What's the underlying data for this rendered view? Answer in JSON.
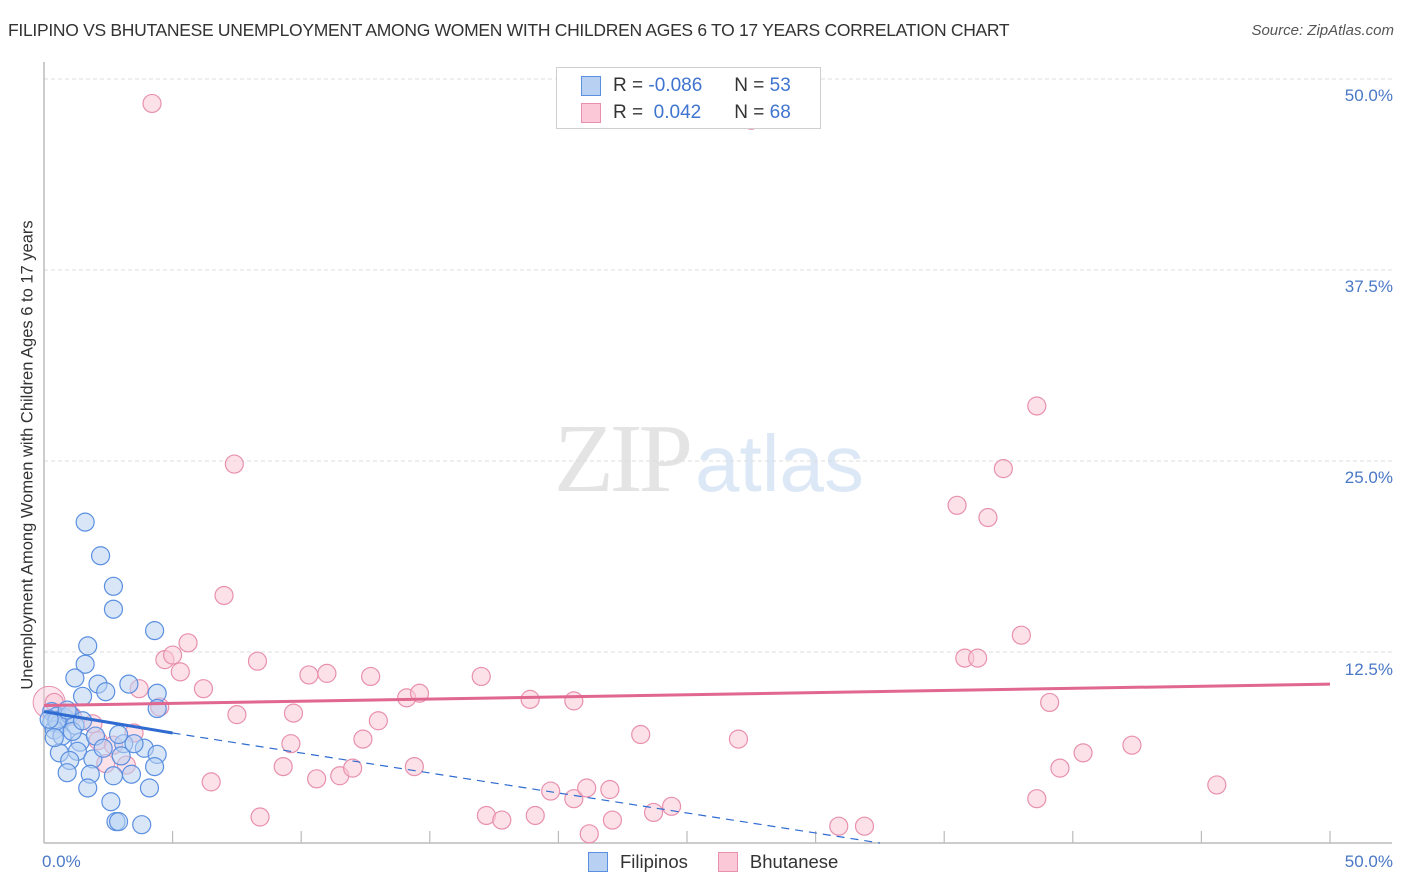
{
  "header": {
    "title": "FILIPINO VS BHUTANESE UNEMPLOYMENT AMONG WOMEN WITH CHILDREN AGES 6 TO 17 YEARS CORRELATION CHART",
    "source": "Source: ZipAtlas.com"
  },
  "watermark": {
    "zip": "ZIP",
    "atlas": "atlas"
  },
  "colors": {
    "filipinos_fill": "#b8d1f3",
    "filipinos_stroke": "#5b8fe0",
    "filipinos_line": "#2f6bd0",
    "bhutanese_fill": "#fac8d7",
    "bhutanese_stroke": "#e890ad",
    "bhutanese_line": "#e0678f",
    "axis_text": "#4a78c6",
    "grid": "#dddddd"
  },
  "legend_top": {
    "rows": [
      {
        "series": "Filipinos",
        "r_label": "R =",
        "r_value": "-0.086",
        "n_label": "N =",
        "n_value": "53"
      },
      {
        "series": "Bhutanese",
        "r_label": "R =",
        "r_value": " 0.042",
        "n_label": "N =",
        "n_value": "68"
      }
    ]
  },
  "legend_bottom": {
    "items": [
      "Filipinos",
      "Bhutanese"
    ]
  },
  "axes": {
    "ylabel": "Unemployment Among Women with Children Ages 6 to 17 years",
    "y_ticks": [
      "50.0%",
      "37.5%",
      "25.0%",
      "12.5%"
    ],
    "x_ticks": [
      "0.0%",
      "50.0%"
    ]
  },
  "chart_data": {
    "type": "scatter",
    "title": "FILIPINO VS BHUTANESE UNEMPLOYMENT AMONG WOMEN WITH CHILDREN AGES 6 TO 17 YEARS CORRELATION CHART",
    "xlabel": "",
    "ylabel": "Unemployment Among Women with Children Ages 6 to 17 years",
    "xlim": [
      0,
      50
    ],
    "ylim": [
      0,
      50
    ],
    "x_tick_labels": [
      "0.0%",
      "50.0%"
    ],
    "y_tick_labels": [
      "12.5%",
      "25.0%",
      "37.5%",
      "50.0%"
    ],
    "grid": true,
    "legend_position": "bottom-center",
    "series": [
      {
        "name": "Filipinos",
        "R": -0.086,
        "N": 53,
        "trend": {
          "x0": 0,
          "y0": 8.6,
          "x1": 5,
          "y1": 7.2,
          "extended_dashed_to": {
            "x": 32.5,
            "y": 0
          }
        },
        "points": [
          [
            1.6,
            21.0
          ],
          [
            2.2,
            18.8
          ],
          [
            2.7,
            16.8
          ],
          [
            2.7,
            15.3
          ],
          [
            4.3,
            13.9
          ],
          [
            1.7,
            12.9
          ],
          [
            1.6,
            11.7
          ],
          [
            1.2,
            10.8
          ],
          [
            2.1,
            10.4
          ],
          [
            3.3,
            10.4
          ],
          [
            4.4,
            9.8
          ],
          [
            1.5,
            9.6
          ],
          [
            2.4,
            9.9
          ],
          [
            4.4,
            8.8
          ],
          [
            0.3,
            8.6
          ],
          [
            0.5,
            8.3
          ],
          [
            0.8,
            8.2
          ],
          [
            0.3,
            7.9
          ],
          [
            0.6,
            7.8
          ],
          [
            1.0,
            8.4
          ],
          [
            1.2,
            7.7
          ],
          [
            0.4,
            7.4
          ],
          [
            0.7,
            7.0
          ],
          [
            1.4,
            6.6
          ],
          [
            2.0,
            7.0
          ],
          [
            3.1,
            6.5
          ],
          [
            3.9,
            6.2
          ],
          [
            1.3,
            6.0
          ],
          [
            2.9,
            7.1
          ],
          [
            0.6,
            5.9
          ],
          [
            1.0,
            5.4
          ],
          [
            1.9,
            5.5
          ],
          [
            3.0,
            5.7
          ],
          [
            4.4,
            5.8
          ],
          [
            0.9,
            4.6
          ],
          [
            1.8,
            4.5
          ],
          [
            2.7,
            4.4
          ],
          [
            3.4,
            4.5
          ],
          [
            4.3,
            5.0
          ],
          [
            1.7,
            3.6
          ],
          [
            4.1,
            3.6
          ],
          [
            2.6,
            2.7
          ],
          [
            2.8,
            1.4
          ],
          [
            2.9,
            1.4
          ],
          [
            3.8,
            1.2
          ],
          [
            0.5,
            8.0
          ],
          [
            0.9,
            8.7
          ],
          [
            0.2,
            8.1
          ],
          [
            1.1,
            7.3
          ],
          [
            0.4,
            6.9
          ],
          [
            3.5,
            6.5
          ],
          [
            1.5,
            8.0
          ],
          [
            2.3,
            6.2
          ]
        ]
      },
      {
        "name": "Bhutanese",
        "R": 0.042,
        "N": 68,
        "trend": {
          "x0": 0,
          "y0": 9.0,
          "x1": 50,
          "y1": 10.4
        },
        "points": [
          [
            4.2,
            48.4
          ],
          [
            27.5,
            47.3
          ],
          [
            7.4,
            24.8
          ],
          [
            37.3,
            24.5
          ],
          [
            35.5,
            22.1
          ],
          [
            36.7,
            21.3
          ],
          [
            38.6,
            28.6
          ],
          [
            7.0,
            16.2
          ],
          [
            5.6,
            13.1
          ],
          [
            4.7,
            12.0
          ],
          [
            5.0,
            12.3
          ],
          [
            5.3,
            11.2
          ],
          [
            8.3,
            11.9
          ],
          [
            10.3,
            11.0
          ],
          [
            11.0,
            11.1
          ],
          [
            12.7,
            10.9
          ],
          [
            17.0,
            10.9
          ],
          [
            18.9,
            9.4
          ],
          [
            14.1,
            9.5
          ],
          [
            6.2,
            10.1
          ],
          [
            3.7,
            10.1
          ],
          [
            4.5,
            8.9
          ],
          [
            7.5,
            8.4
          ],
          [
            9.7,
            8.5
          ],
          [
            13.0,
            8.0
          ],
          [
            20.6,
            9.3
          ],
          [
            23.2,
            7.1
          ],
          [
            27.0,
            6.8
          ],
          [
            35.8,
            12.1
          ],
          [
            36.3,
            12.1
          ],
          [
            38.0,
            13.6
          ],
          [
            39.1,
            9.2
          ],
          [
            40.4,
            5.9
          ],
          [
            42.3,
            6.4
          ],
          [
            39.5,
            4.9
          ],
          [
            45.6,
            3.8
          ],
          [
            38.6,
            2.9
          ],
          [
            0.4,
            9.2
          ],
          [
            1.1,
            8.3
          ],
          [
            1.9,
            7.8
          ],
          [
            2.1,
            6.7
          ],
          [
            2.7,
            6.4
          ],
          [
            3.5,
            7.2
          ],
          [
            2.4,
            5.2
          ],
          [
            3.2,
            5.1
          ],
          [
            6.5,
            4.0
          ],
          [
            9.6,
            6.5
          ],
          [
            9.3,
            5.0
          ],
          [
            10.6,
            4.2
          ],
          [
            11.5,
            4.4
          ],
          [
            12.0,
            4.9
          ],
          [
            12.4,
            6.8
          ],
          [
            14.4,
            5.0
          ],
          [
            8.4,
            1.7
          ],
          [
            17.2,
            1.8
          ],
          [
            17.8,
            1.5
          ],
          [
            19.1,
            1.8
          ],
          [
            19.7,
            3.4
          ],
          [
            20.6,
            2.9
          ],
          [
            21.1,
            3.6
          ],
          [
            22.0,
            3.5
          ],
          [
            21.2,
            0.6
          ],
          [
            22.1,
            1.5
          ],
          [
            23.7,
            2.0
          ],
          [
            24.4,
            2.4
          ],
          [
            30.9,
            1.1
          ],
          [
            31.9,
            1.1
          ],
          [
            14.6,
            9.8
          ]
        ]
      }
    ]
  }
}
